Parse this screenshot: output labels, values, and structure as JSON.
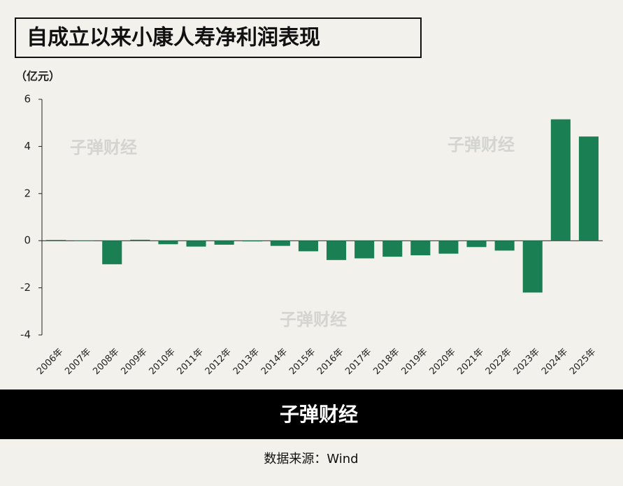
{
  "chart_data": {
    "type": "bar",
    "title": "自成立以来小康人寿净利润表现",
    "y_unit": "（亿元）",
    "categories": [
      "2006年",
      "2007年",
      "2008年",
      "2009年",
      "2010年",
      "2011年",
      "2012年",
      "2013年",
      "2014年",
      "2015年",
      "2016年",
      "2017年",
      "2018年",
      "2019年",
      "2020年",
      "2021年",
      "2022年",
      "2023年",
      "2024年",
      "2025年"
    ],
    "values": [
      0.03,
      -0.01,
      -1.0,
      0.04,
      -0.15,
      -0.25,
      -0.17,
      -0.03,
      -0.22,
      -0.45,
      -0.82,
      -0.75,
      -0.68,
      -0.62,
      -0.55,
      -0.27,
      -0.42,
      -2.2,
      5.15,
      4.42
    ],
    "color": "#1a7f52",
    "ylim": [
      -4,
      6
    ],
    "yticks": [
      -4,
      -2,
      0,
      2,
      4,
      6
    ],
    "grid": false,
    "watermark": "子弹财经",
    "brand": "子弹财经",
    "source": "数据来源：Wind"
  }
}
